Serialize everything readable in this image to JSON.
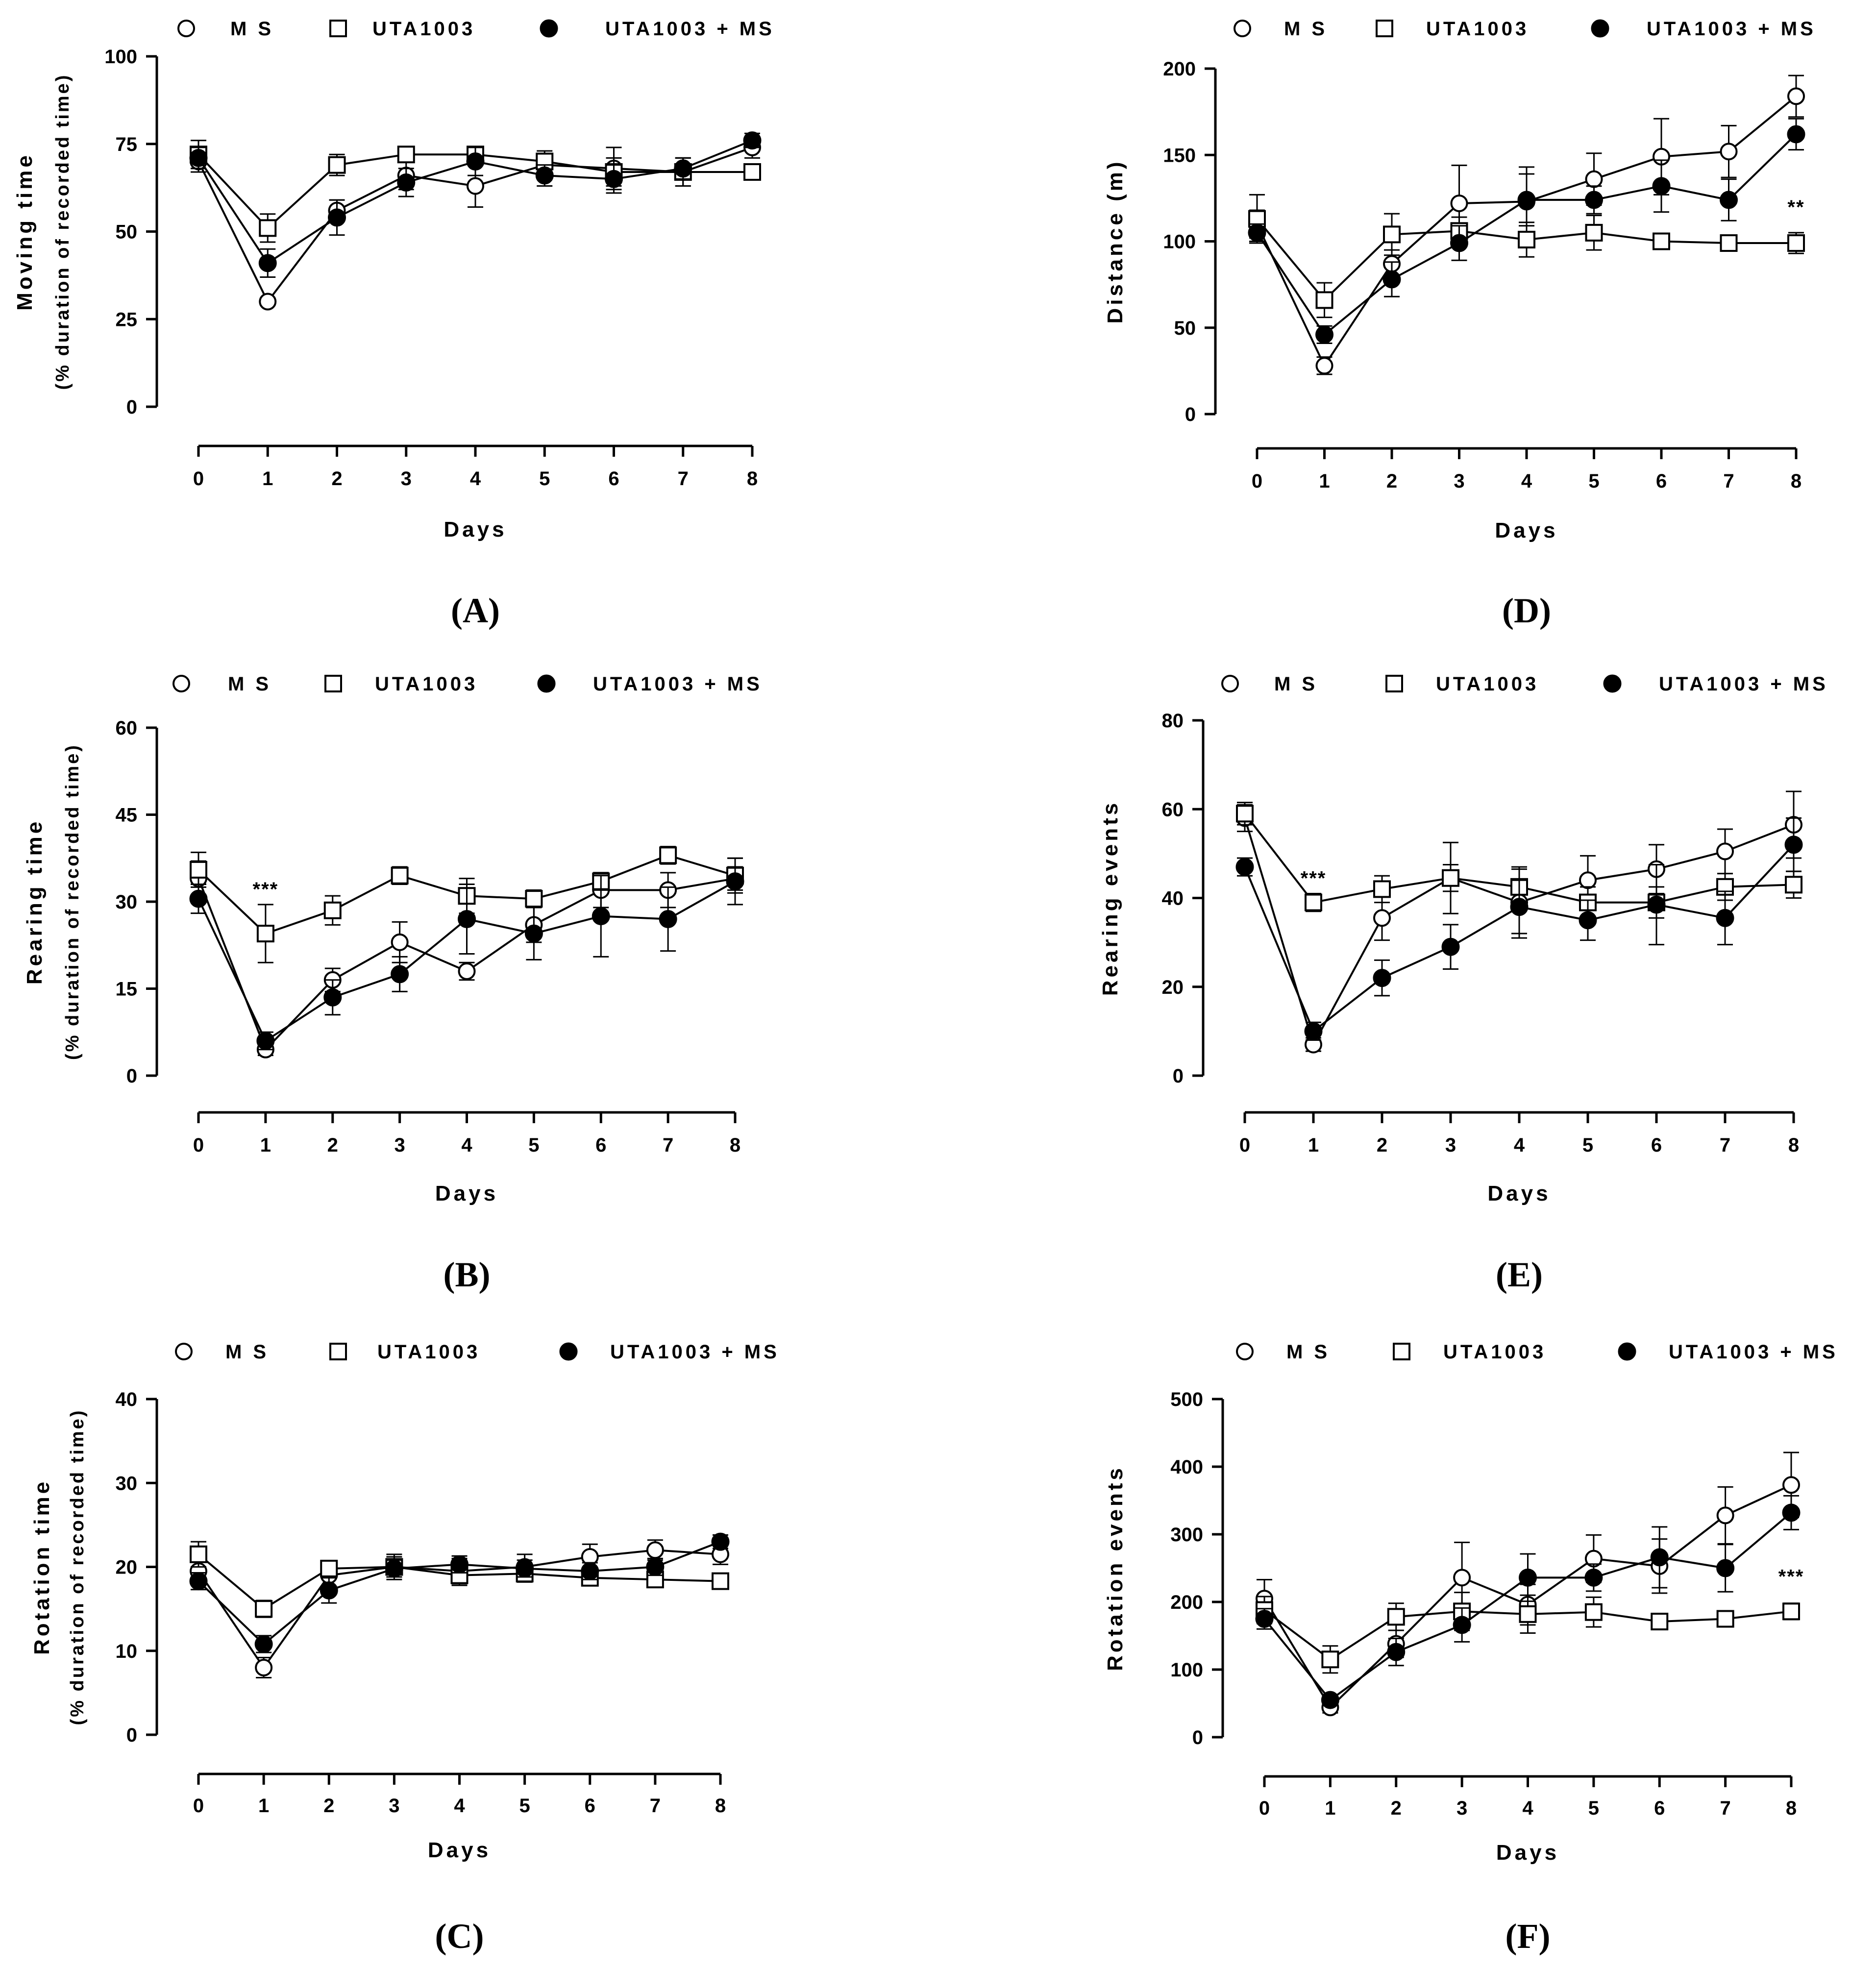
{
  "figure": {
    "legend": {
      "ms": "M S",
      "uta": "UTA1003",
      "combo": "UTA1003 + MS"
    },
    "colors": {
      "stroke": "#000000",
      "open_fill": "#ffffff",
      "filled": "#000000"
    }
  },
  "chart_data": [
    {
      "panel": "(A)",
      "type": "line",
      "xlabel": "Days",
      "ylabel": "Moving time",
      "ylabel_sub": "(% duration of recorded time)",
      "ylim": [
        0,
        100
      ],
      "yticks": [
        0,
        25,
        50,
        75,
        100
      ],
      "x": [
        0,
        1,
        2,
        3,
        4,
        5,
        6,
        7,
        8
      ],
      "annotations": [],
      "series": [
        {
          "name": "M S",
          "marker": "open-circle",
          "values": [
            70,
            30,
            56,
            66,
            63,
            69,
            68,
            67,
            74
          ],
          "errors": [
            3,
            1,
            3,
            4,
            6,
            3,
            6,
            4,
            3
          ]
        },
        {
          "name": "UTA1003",
          "marker": "open-square",
          "values": [
            72,
            51,
            69,
            72,
            72,
            70,
            67,
            67,
            67
          ],
          "errors": [
            4,
            4,
            3,
            2,
            2,
            3,
            4,
            4,
            2
          ]
        },
        {
          "name": "UTA1003 + MS",
          "marker": "filled-circle",
          "values": [
            71,
            41,
            54,
            64,
            70,
            66,
            65,
            68,
            76
          ],
          "errors": [
            3,
            4,
            5,
            4,
            4,
            3,
            4,
            3,
            2
          ]
        }
      ]
    },
    {
      "panel": "(B)",
      "type": "line",
      "xlabel": "Days",
      "ylabel": "Rearing time",
      "ylabel_sub": "(% duration of recorded time)",
      "ylim": [
        0,
        60
      ],
      "yticks": [
        0,
        15,
        30,
        45,
        60
      ],
      "x": [
        0,
        1,
        2,
        3,
        4,
        5,
        6,
        7,
        8
      ],
      "annotations": [
        {
          "text": "***",
          "x": 1,
          "y": 31
        }
      ],
      "series": [
        {
          "name": "M S",
          "marker": "open-circle",
          "values": [
            34,
            4.5,
            16.5,
            23,
            18,
            26,
            32,
            32,
            34
          ],
          "errors": [
            3,
            1,
            2,
            3.5,
            1.5,
            3,
            3,
            3,
            2
          ]
        },
        {
          "name": "UTA1003",
          "marker": "open-square",
          "values": [
            35.5,
            24.5,
            28.5,
            34.5,
            31,
            30.5,
            33.5,
            38,
            34.5
          ],
          "errors": [
            3,
            5,
            2.5,
            1.5,
            3,
            1.5,
            1.5,
            1.5,
            3
          ]
        },
        {
          "name": "UTA1003 + MS",
          "marker": "filled-circle",
          "values": [
            30.5,
            6,
            13.5,
            17.5,
            27,
            24.5,
            27.5,
            27,
            33.5
          ],
          "errors": [
            2.5,
            1.5,
            3,
            3,
            6,
            4.5,
            7,
            5.5,
            4
          ]
        }
      ]
    },
    {
      "panel": "(C)",
      "type": "line",
      "xlabel": "Days",
      "ylabel": "Rotation time",
      "ylabel_sub": "(% duration of recorded time)",
      "ylim": [
        0,
        40
      ],
      "yticks": [
        0,
        10,
        20,
        30,
        40
      ],
      "x": [
        0,
        1,
        2,
        3,
        4,
        5,
        6,
        7,
        8
      ],
      "annotations": [],
      "series": [
        {
          "name": "M S",
          "marker": "open-circle",
          "values": [
            19.5,
            8,
            19,
            20,
            19.5,
            20,
            21.2,
            22,
            21.5
          ],
          "errors": [
            1.5,
            1.2,
            1.5,
            1.5,
            1.5,
            1.5,
            1.5,
            1.2,
            1.2
          ]
        },
        {
          "name": "UTA1003",
          "marker": "open-square",
          "values": [
            21.5,
            15,
            19.8,
            20,
            19,
            19.2,
            18.7,
            18.5,
            18.3
          ],
          "errors": [
            1.5,
            1,
            0.8,
            1.2,
            1.2,
            1,
            0.8,
            0.7,
            0.7
          ]
        },
        {
          "name": "UTA1003 + MS",
          "marker": "filled-circle",
          "values": [
            18.3,
            10.8,
            17.2,
            19.8,
            20.3,
            19.8,
            19.5,
            20,
            23
          ],
          "errors": [
            1,
            1,
            1.5,
            1,
            1,
            1,
            1,
            1,
            0.8
          ]
        }
      ]
    },
    {
      "panel": "(D)",
      "type": "line",
      "xlabel": "Days",
      "ylabel": "Distance (m)",
      "ylabel_sub": "",
      "ylim": [
        0,
        200
      ],
      "yticks": [
        0,
        50,
        100,
        150,
        200
      ],
      "x": [
        0,
        1,
        2,
        3,
        4,
        5,
        6,
        7,
        8
      ],
      "annotations": [
        {
          "text": "**",
          "x": 8,
          "y": 116
        }
      ],
      "series": [
        {
          "name": "M S",
          "marker": "open-circle",
          "values": [
            110,
            28,
            87,
            122,
            123,
            136,
            149,
            152,
            184
          ],
          "errors": [
            8,
            5,
            8,
            22,
            20,
            15,
            22,
            15,
            12
          ]
        },
        {
          "name": "UTA1003",
          "marker": "open-square",
          "values": [
            113,
            66,
            104,
            106,
            101,
            105,
            100,
            99,
            99
          ],
          "errors": [
            14,
            10,
            12,
            8,
            10,
            10,
            3,
            3,
            6
          ]
        },
        {
          "name": "UTA1003 + MS",
          "marker": "filled-circle",
          "values": [
            105,
            46,
            78,
            99,
            124,
            124,
            132,
            124,
            162
          ],
          "errors": [
            5,
            5,
            10,
            10,
            15,
            8,
            15,
            12,
            9
          ]
        }
      ]
    },
    {
      "panel": "(E)",
      "type": "line",
      "xlabel": "Days",
      "ylabel": "Rearing events",
      "ylabel_sub": "",
      "ylim": [
        0,
        80
      ],
      "yticks": [
        0,
        20,
        40,
        60,
        80
      ],
      "x": [
        0,
        1,
        2,
        3,
        4,
        5,
        6,
        7,
        8
      ],
      "annotations": [
        {
          "text": "***",
          "x": 1,
          "y": 43
        }
      ],
      "series": [
        {
          "name": "M S",
          "marker": "open-circle",
          "values": [
            58,
            7,
            35.5,
            44.5,
            39,
            44,
            46.5,
            50.5,
            56.5
          ],
          "errors": [
            3,
            1.5,
            5,
            8,
            8,
            5.5,
            5.5,
            5,
            7.5
          ]
        },
        {
          "name": "UTA1003",
          "marker": "open-square",
          "values": [
            59,
            39,
            42,
            44.5,
            42.5,
            39,
            39,
            42.5,
            43
          ],
          "errors": [
            2.5,
            2,
            3,
            3,
            4,
            3.5,
            3.5,
            3,
            3
          ]
        },
        {
          "name": "UTA1003 + MS",
          "marker": "filled-circle",
          "values": [
            47,
            10,
            22,
            29,
            38,
            35,
            38.5,
            35.5,
            52
          ],
          "errors": [
            2,
            2,
            4,
            5,
            6,
            4.5,
            9,
            6,
            6
          ]
        }
      ]
    },
    {
      "panel": "(F)",
      "type": "line",
      "xlabel": "Days",
      "ylabel": "Rotation events",
      "ylabel_sub": "",
      "ylim": [
        0,
        500
      ],
      "yticks": [
        0,
        100,
        200,
        300,
        400,
        500
      ],
      "x": [
        0,
        1,
        2,
        3,
        4,
        5,
        6,
        7,
        8
      ],
      "annotations": [
        {
          "text": "***",
          "x": 8,
          "y": 228
        }
      ],
      "series": [
        {
          "name": "M S",
          "marker": "open-circle",
          "values": [
            205,
            44,
            138,
            236,
            196,
            264,
            253,
            328,
            373
          ],
          "errors": [
            28,
            8,
            20,
            52,
            30,
            35,
            40,
            42,
            48
          ]
        },
        {
          "name": "UTA1003",
          "marker": "open-square",
          "values": [
            188,
            115,
            178,
            186,
            182,
            185,
            171,
            175,
            186
          ],
          "errors": [
            20,
            20,
            20,
            28,
            28,
            22,
            8,
            8,
            12
          ]
        },
        {
          "name": "UTA1003 + MS",
          "marker": "filled-circle",
          "values": [
            175,
            55,
            126,
            166,
            236,
            236,
            266,
            250,
            332
          ],
          "errors": [
            15,
            8,
            20,
            25,
            35,
            20,
            45,
            35,
            25
          ]
        }
      ]
    }
  ]
}
